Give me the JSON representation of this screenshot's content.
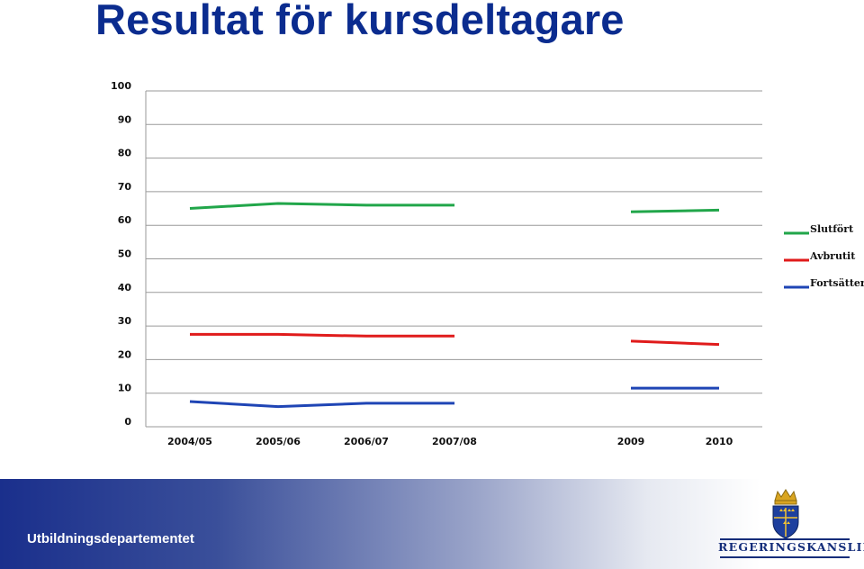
{
  "slide": {
    "title": "Resultat för kursdeltagare",
    "footer_text": "Utbildningsdepartementet",
    "logo_text": "REGERINGSKANSLIET"
  },
  "colors": {
    "title": "#0b2c8f",
    "Slutfört": "#21a64a",
    "Avbrutit": "#e01b1b",
    "Fortsätter": "#1f45b5"
  },
  "chart_data": {
    "type": "line",
    "title": "",
    "xlabel": "",
    "ylabel": "",
    "categories": [
      "2004/05",
      "2005/06",
      "2006/07",
      "2007/08",
      "",
      "2009",
      "2010"
    ],
    "ylim": [
      0,
      100
    ],
    "yticks": [
      0,
      10,
      20,
      30,
      40,
      50,
      60,
      70,
      80,
      90,
      100
    ],
    "grid": true,
    "legend_position": "right",
    "series": [
      {
        "name": "Slutfört",
        "values": [
          65,
          66.5,
          66,
          66,
          null,
          64,
          64.5
        ]
      },
      {
        "name": "Avbrutit",
        "values": [
          27.5,
          27.5,
          27,
          27,
          null,
          25.5,
          24.5
        ]
      },
      {
        "name": "Fortsätter",
        "values": [
          7.5,
          6,
          7,
          7,
          null,
          11.5,
          11.5
        ]
      }
    ]
  }
}
